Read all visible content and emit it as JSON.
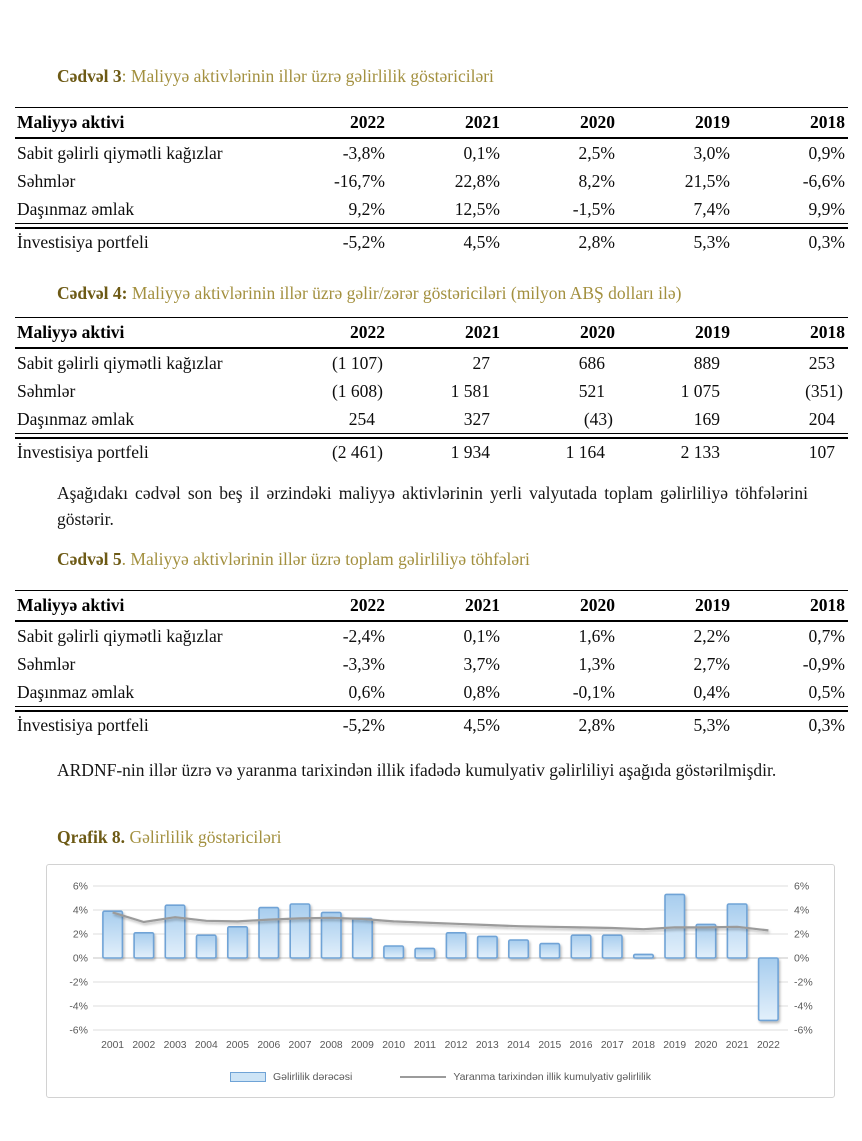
{
  "headings": {
    "t3_bold": "Cədvəl 3",
    "t3_rest": ": Maliyyə aktivlərinin illər üzrə gəlirlilik göstəriciləri",
    "t4_bold": "Cədvəl 4:",
    "t4_rest": " Maliyyə aktivlərinin illər üzrə gəlir/zərər göstəriciləri (milyon ABŞ dolları ilə)",
    "t5_bold": "Cədvəl 5",
    "t5_rest": ". Maliyyə aktivlərinin illər üzrə toplam gəlirliliyə töhfələri",
    "q8_bold": "Qrafik 8.",
    "q8_rest": " Gəlirlilik göstəriciləri"
  },
  "paragraphs": {
    "p1": "Aşağıdakı cədvəl son beş il ərzindəki maliyyə aktivlərinin yerli valyutada toplam gəlirliliyə töhfələrini göstərir.",
    "p2": "ARDNF-nin illər üzrə və yaranma tarixindən illik ifadədə kumulyativ gəlirliliyi aşağıda göstərilmişdir."
  },
  "tables": {
    "table3": {
      "columns": [
        "Maliyyə aktivi",
        "2022",
        "2021",
        "2020",
        "2019",
        "2018"
      ],
      "rows": [
        {
          "label": "Sabit gəlirli qiymətli kağızlar",
          "values": [
            "-3,8%",
            "0,1%",
            "2,5%",
            "3,0%",
            "0,9%"
          ]
        },
        {
          "label": "Səhmlər",
          "values": [
            "-16,7%",
            "22,8%",
            "8,2%",
            "21,5%",
            "-6,6%"
          ]
        },
        {
          "label": "Daşınmaz əmlak",
          "values": [
            "9,2%",
            "12,5%",
            "-1,5%",
            "7,4%",
            "9,9%"
          ]
        },
        {
          "label": "İnvestisiya portfeli",
          "values": [
            "-5,2%",
            "4,5%",
            "2,8%",
            "5,3%",
            "0,3%"
          ]
        }
      ],
      "rule_after_row": 2,
      "value_pad": 3,
      "value_pad_paren": 3
    },
    "table4": {
      "columns": [
        "Maliyyə aktivi",
        "2022",
        "2021",
        "2020",
        "2019",
        "2018"
      ],
      "rows": [
        {
          "label": "Sabit gəlirli qiymətli kağızlar",
          "values": [
            "(1 107)",
            "27",
            "686",
            "889",
            "253"
          ]
        },
        {
          "label": "Səhmlər",
          "values": [
            "(1 608)",
            "1 581",
            "521",
            "1 075",
            "(351)"
          ]
        },
        {
          "label": "Daşınmaz əmlak",
          "values": [
            "254",
            "327",
            "(43)",
            "169",
            "204"
          ]
        },
        {
          "label": "İnvestisiya portfeli",
          "values": [
            "(2 461)",
            "1 934",
            "1 164",
            "2 133",
            "107"
          ]
        }
      ],
      "rule_after_row": 2,
      "value_pad": 13,
      "value_pad_paren": 5
    },
    "table5": {
      "columns": [
        "Maliyyə aktivi",
        "2022",
        "2021",
        "2020",
        "2019",
        "2018"
      ],
      "rows": [
        {
          "label": "Sabit gəlirli qiymətli kağızlar",
          "values": [
            "-2,4%",
            "0,1%",
            "1,6%",
            "2,2%",
            "0,7%"
          ]
        },
        {
          "label": "Səhmlər",
          "values": [
            "-3,3%",
            "3,7%",
            "1,3%",
            "2,7%",
            "-0,9%"
          ]
        },
        {
          "label": "Daşınmaz əmlak",
          "values": [
            "0,6%",
            "0,8%",
            "-0,1%",
            "0,4%",
            "0,5%"
          ]
        },
        {
          "label": "İnvestisiya portfeli",
          "values": [
            "-5,2%",
            "4,5%",
            "2,8%",
            "5,3%",
            "0,3%"
          ]
        }
      ],
      "rule_after_row": 2,
      "value_pad": 3,
      "value_pad_paren": 3
    }
  },
  "chart_data": {
    "type": "bar",
    "title": "Gəlirlilik göstəriciləri",
    "categories": [
      "2001",
      "2002",
      "2003",
      "2004",
      "2005",
      "2006",
      "2007",
      "2008",
      "2009",
      "2010",
      "2011",
      "2012",
      "2013",
      "2014",
      "2015",
      "2016",
      "2017",
      "2018",
      "2019",
      "2020",
      "2021",
      "2022"
    ],
    "series": [
      {
        "name": "Gəlirlilik dərəcəsi",
        "type": "bar",
        "values": [
          3.9,
          2.1,
          4.4,
          1.9,
          2.6,
          4.2,
          4.5,
          3.8,
          3.3,
          1.0,
          0.8,
          2.1,
          1.8,
          1.5,
          1.2,
          1.9,
          1.9,
          0.3,
          5.3,
          2.8,
          4.5,
          -5.2
        ]
      },
      {
        "name": "Yaranma tarixindən illik kumulyativ gəlirlilik",
        "type": "line",
        "values": [
          3.8,
          3.0,
          3.4,
          3.1,
          3.05,
          3.2,
          3.3,
          3.35,
          3.25,
          3.05,
          2.95,
          2.85,
          2.75,
          2.65,
          2.6,
          2.55,
          2.5,
          2.4,
          2.55,
          2.55,
          2.6,
          2.3
        ]
      }
    ],
    "ylim": [
      -6,
      6
    ],
    "yticks": [
      "6%",
      "4%",
      "2%",
      "0%",
      "-2%",
      "-4%",
      "-6%"
    ],
    "dual_axis": true,
    "grid": true,
    "legend_position": "bottom",
    "colors": {
      "bar_fill_top": "#a7cdee",
      "bar_fill_bottom": "#e3f0fb",
      "bar_border": "#6fa3d6",
      "line": "#9b9b9b",
      "grid": "#dedede",
      "zero_line": "#c6c6c6",
      "tick": "#595959"
    }
  }
}
